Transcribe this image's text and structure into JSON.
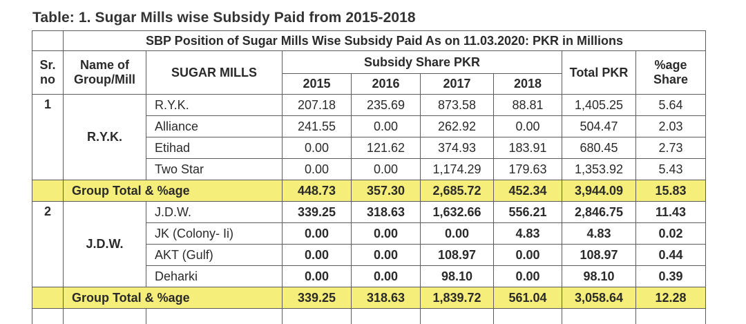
{
  "title": "Table: 1. Sugar Mills wise Subsidy Paid from 2015-2018",
  "banner": "SBP Position of Sugar Mills Wise Subsidy Paid As on 11.03.2020: PKR in Millions",
  "headers": {
    "sr_line1": "Sr.",
    "sr_line2": "no",
    "group_line1": "Name of",
    "group_line2": "Group/Mill",
    "mills": "SUGAR MILLS",
    "subsidy": "Subsidy Share PKR",
    "years": [
      "2015",
      "2016",
      "2017",
      "2018"
    ],
    "total": "Total PKR",
    "share_line1": "%age",
    "share_line2": "Share"
  },
  "groups": [
    {
      "sr": "1",
      "name": "R.Y.K.",
      "mills": [
        {
          "name": "R.Y.K.",
          "v2015": "207.18",
          "v2016": "235.69",
          "v2017": "873.58",
          "v2018": "88.81",
          "total": "1,405.25",
          "share": "5.64"
        },
        {
          "name": "Alliance",
          "v2015": "241.55",
          "v2016": "0.00",
          "v2017": "262.92",
          "v2018": "0.00",
          "total": "504.47",
          "share": "2.03"
        },
        {
          "name": "Etihad",
          "v2015": "0.00",
          "v2016": "121.62",
          "v2017": "374.93",
          "v2018": "183.91",
          "total": "680.45",
          "share": "2.73"
        },
        {
          "name": "Two Star",
          "v2015": "0.00",
          "v2016": "0.00",
          "v2017": "1,174.29",
          "v2018": "179.63",
          "total": "1,353.92",
          "share": "5.43"
        }
      ],
      "total_row": {
        "label": "Group Total & %age",
        "v2015": "448.73",
        "v2016": "357.30",
        "v2017": "2,685.72",
        "v2018": "452.34",
        "total": "3,944.09",
        "share": "15.83"
      }
    },
    {
      "sr": "2",
      "name": "J.D.W.",
      "mills": [
        {
          "name": "J.D.W.",
          "v2015": "339.25",
          "v2016": "318.63",
          "v2017": "1,632.66",
          "v2018": "556.21",
          "total": "2,846.75",
          "share": "11.43"
        },
        {
          "name": "JK (Colony- Ii)",
          "v2015": "0.00",
          "v2016": "0.00",
          "v2017": "0.00",
          "v2018": "4.83",
          "total": "4.83",
          "share": "0.02"
        },
        {
          "name": "AKT (Gulf)",
          "v2015": "0.00",
          "v2016": "0.00",
          "v2017": "108.97",
          "v2018": "0.00",
          "total": "108.97",
          "share": "0.44"
        },
        {
          "name": "Deharki",
          "v2015": "0.00",
          "v2016": "0.00",
          "v2017": "98.10",
          "v2018": "0.00",
          "total": "98.10",
          "share": "0.39"
        }
      ],
      "total_row": {
        "label": "Group Total & %age",
        "v2015": "339.25",
        "v2016": "318.63",
        "v2017": "1,839.72",
        "v2018": "561.04",
        "total": "3,058.64",
        "share": "12.28"
      }
    }
  ],
  "colors": {
    "highlight": "#f6ee7a",
    "border": "#5a5a5a"
  }
}
